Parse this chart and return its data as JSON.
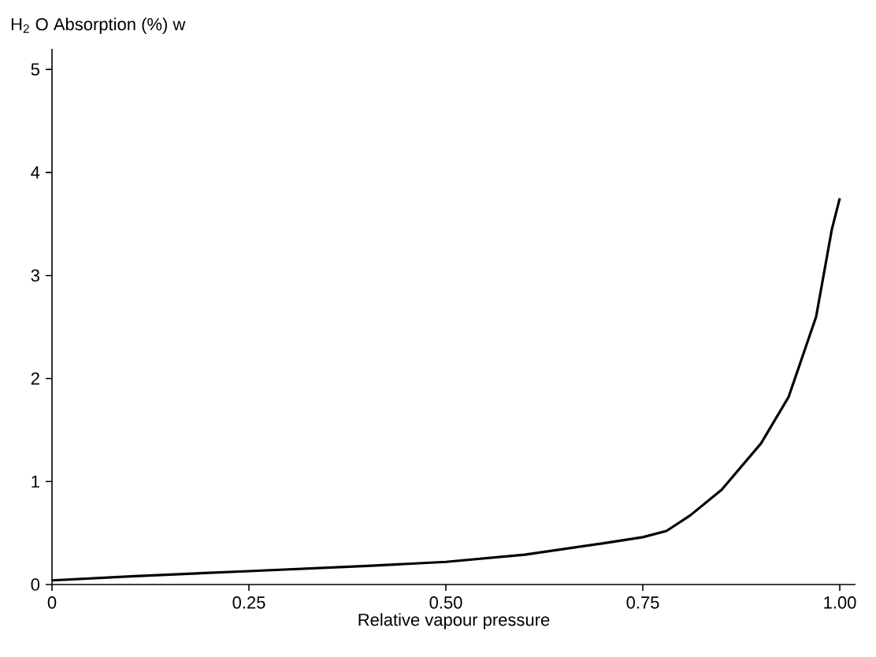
{
  "chart_data": {
    "type": "line",
    "xlabel": "Relative vapour pressure",
    "ylabel": "H$_{2}$ O Absorption (%) w",
    "xlim": [
      0,
      1.02
    ],
    "ylim": [
      0,
      5.2
    ],
    "xticks": [
      0,
      0.25,
      {
        "value": 0.5,
        "label": "0.50"
      },
      0.75,
      {
        "value": 1,
        "label": "1.00"
      }
    ],
    "yticks": [
      0,
      1,
      2,
      3,
      4,
      5
    ],
    "series": [
      {
        "color": "#000000",
        "x": [
          0,
          0.1,
          0.25,
          0.4,
          0.5,
          0.6,
          0.7,
          0.75,
          0.78,
          0.81,
          0.85,
          0.9,
          0.935,
          0.97,
          0.99,
          1.0
        ],
        "values": [
          0.04,
          0.08,
          0.13,
          0.18,
          0.22,
          0.29,
          0.4,
          0.46,
          0.52,
          0.67,
          0.92,
          1.37,
          1.82,
          2.6,
          3.45,
          3.75
        ]
      }
    ],
    "marker": "none",
    "grid": false
  }
}
